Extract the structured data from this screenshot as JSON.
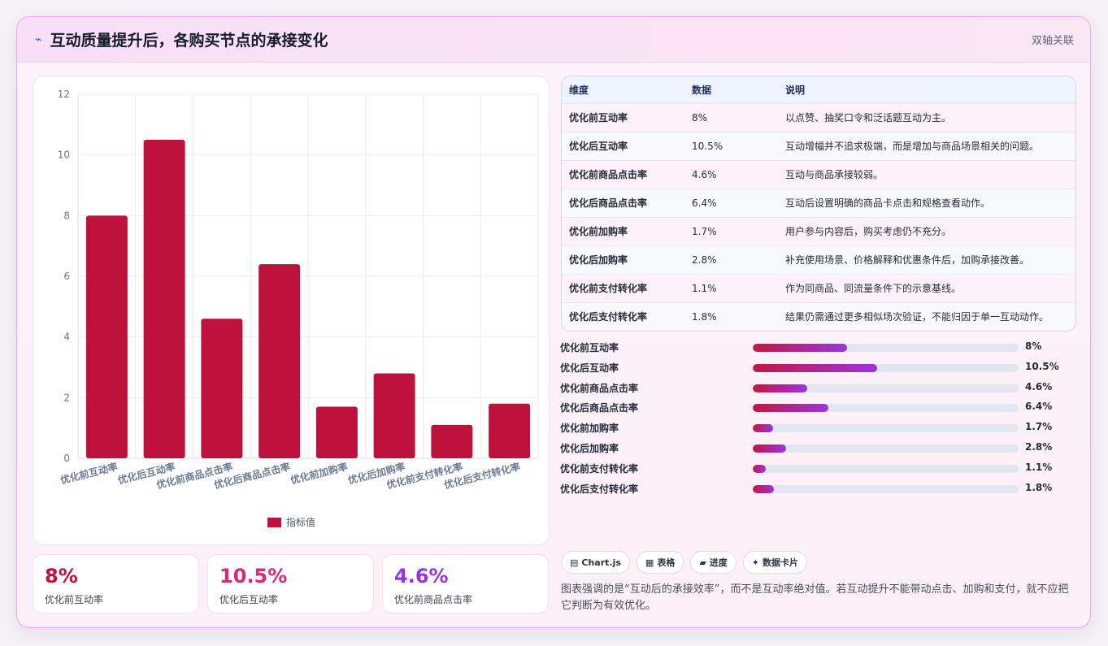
{
  "header": {
    "icon": "activity-line-icon",
    "title": "互动质量提升后，各购买节点的承接变化",
    "tag": "双轴关联"
  },
  "chart_data": {
    "type": "bar",
    "categories": [
      "优化前互动率",
      "优化后互动率",
      "优化前商品点击率",
      "优化后商品点击率",
      "优化前加购率",
      "优化后加购率",
      "优化前支付转化率",
      "优化后支付转化率"
    ],
    "series": [
      {
        "name": "指标值",
        "values": [
          8,
          10.5,
          4.6,
          6.4,
          1.7,
          2.8,
          1.1,
          1.8
        ],
        "color": "#be123c"
      }
    ],
    "ylim": [
      0,
      12
    ],
    "yticks": [
      0,
      2,
      4,
      6,
      8,
      10,
      12
    ],
    "grid": true,
    "legend": "bottom"
  },
  "kpis": [
    {
      "value": "8%",
      "label": "优化前互动率",
      "color": "#be123c"
    },
    {
      "value": "10.5%",
      "label": "优化后互动率",
      "color": "#db2777"
    },
    {
      "value": "4.6%",
      "label": "优化前商品点击率",
      "color": "#9333ea"
    }
  ],
  "table": {
    "headers": [
      "维度",
      "数据",
      "说明"
    ],
    "rows": [
      [
        "优化前互动率",
        "8%",
        "以点赞、抽奖口令和泛话题互动为主。"
      ],
      [
        "优化后互动率",
        "10.5%",
        "互动增幅并不追求极端，而是增加与商品场景相关的问题。"
      ],
      [
        "优化前商品点击率",
        "4.6%",
        "互动与商品承接较弱。"
      ],
      [
        "优化后商品点击率",
        "6.4%",
        "互动后设置明确的商品卡点击和规格查看动作。"
      ],
      [
        "优化前加购率",
        "1.7%",
        "用户参与内容后，购买考虑仍不充分。"
      ],
      [
        "优化后加购率",
        "2.8%",
        "补充使用场景、价格解释和优惠条件后，加购承接改善。"
      ],
      [
        "优化前支付转化率",
        "1.1%",
        "作为同商品、同流量条件下的示意基线。"
      ],
      [
        "优化后支付转化率",
        "1.8%",
        "结果仍需通过更多相似场次验证，不能归因于单一互动动作。"
      ]
    ]
  },
  "progress": [
    {
      "label": "优化前互动率",
      "value_text": "8%",
      "value": 8
    },
    {
      "label": "优化后互动率",
      "value_text": "10.5%",
      "value": 10.5
    },
    {
      "label": "优化前商品点击率",
      "value_text": "4.6%",
      "value": 4.6
    },
    {
      "label": "优化后商品点击率",
      "value_text": "6.4%",
      "value": 6.4
    },
    {
      "label": "优化前加购率",
      "value_text": "1.7%",
      "value": 1.7
    },
    {
      "label": "优化后加购率",
      "value_text": "2.8%",
      "value": 2.8
    },
    {
      "label": "优化前支付转化率",
      "value_text": "1.1%",
      "value": 1.1
    },
    {
      "label": "优化后支付转化率",
      "value_text": "1.8%",
      "value": 1.8
    }
  ],
  "progress_max": 22.5,
  "chips": [
    {
      "icon": "chart-icon",
      "glyph": "▤",
      "label": "Chart.js"
    },
    {
      "icon": "table-icon",
      "glyph": "▦",
      "label": "表格"
    },
    {
      "icon": "progress-icon",
      "glyph": "▰",
      "label": "进度"
    },
    {
      "icon": "sparkle-icon",
      "glyph": "✦",
      "label": "数据卡片"
    }
  ],
  "note": "图表强调的是“互动后的承接效率”，而不是互动率绝对值。若互动提升不能带动点击、加购和支付，就不应把它判断为有效优化。"
}
